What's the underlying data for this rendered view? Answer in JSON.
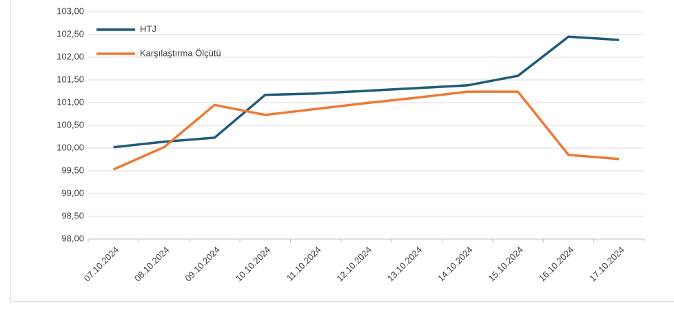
{
  "chart_data": {
    "type": "line",
    "categories": [
      "07.10.2024",
      "08.10.2024",
      "09.10.2024",
      "10.10.2024",
      "11.10.2024",
      "12.10.2024",
      "13.10.2024",
      "14.10.2024",
      "15.10.2024",
      "16.10.2024",
      "17.10.2024"
    ],
    "series": [
      {
        "name": "HTJ",
        "color": "#1f5b7a",
        "values": [
          100.02,
          100.14,
          100.23,
          101.17,
          101.2,
          101.26,
          101.32,
          101.38,
          101.59,
          102.45,
          102.38
        ]
      },
      {
        "name": "Karşılaştırma Ölçütü",
        "color": "#ec7a35",
        "values": [
          99.53,
          100.02,
          100.95,
          100.73,
          100.86,
          100.99,
          101.11,
          101.24,
          101.24,
          99.85,
          99.76
        ]
      }
    ],
    "ylim": [
      98,
      103
    ],
    "yticks": [
      {
        "value": 98,
        "label": "98,00"
      },
      {
        "value": 98.5,
        "label": "98,50"
      },
      {
        "value": 99,
        "label": "99,00"
      },
      {
        "value": 99.5,
        "label": "99,50"
      },
      {
        "value": 100,
        "label": "100,00"
      },
      {
        "value": 100.5,
        "label": "100,50"
      },
      {
        "value": 101,
        "label": "101,00"
      },
      {
        "value": 101.5,
        "label": "101,50"
      },
      {
        "value": 102,
        "label": "102,00"
      },
      {
        "value": 102.5,
        "label": "102,50"
      },
      {
        "value": 103,
        "label": "103,00"
      }
    ],
    "grid": true,
    "legend": "upper-left"
  }
}
